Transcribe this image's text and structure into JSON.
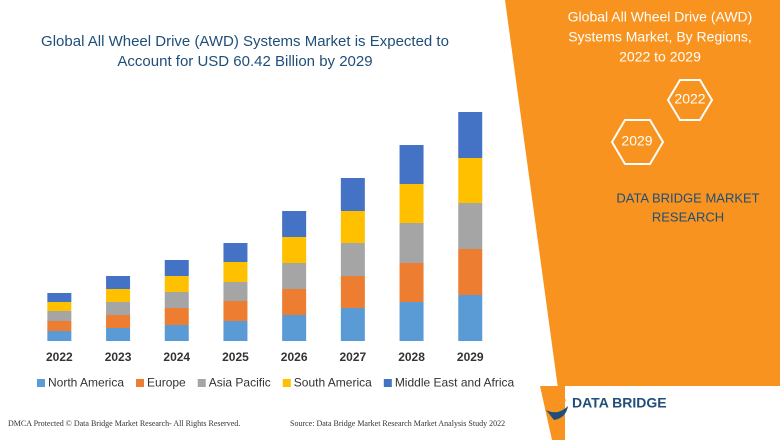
{
  "chart_data": {
    "type": "stacked-bar",
    "title": [
      "Global All Wheel Drive (AWD) Systems Market is Expected to",
      "Account for USD 60.42 Billion by 2029"
    ],
    "categories": [
      "2022",
      "2023",
      "2024",
      "2025",
      "2026",
      "2027",
      "2028",
      "2029"
    ],
    "series": [
      {
        "name": "North America",
        "color": "#5b9bd5",
        "values": [
          10,
          13,
          16,
          20,
          26,
          33,
          39,
          46
        ]
      },
      {
        "name": "Europe",
        "color": "#ed7d31",
        "values": [
          10,
          13,
          17,
          20,
          26,
          32,
          39,
          46
        ]
      },
      {
        "name": "Asia Pacific",
        "color": "#a5a5a5",
        "values": [
          10,
          13,
          16,
          19,
          26,
          33,
          40,
          46
        ]
      },
      {
        "name": "South America",
        "color": "#ffc000",
        "values": [
          9,
          13,
          16,
          20,
          26,
          32,
          39,
          45
        ]
      },
      {
        "name": "Middle East and Africa",
        "color": "#4472c4",
        "values": [
          9,
          13,
          16,
          19,
          26,
          33,
          39,
          46
        ]
      }
    ],
    "ylim": [
      0,
      240
    ]
  },
  "side_panel": {
    "title": [
      "Global All Wheel Drive (AWD)",
      "Systems Market, By Regions,",
      "2022 to 2029"
    ],
    "hexagons": [
      "2022",
      "2029"
    ],
    "brand": [
      "DATA BRIDGE MARKET",
      "RESEARCH"
    ]
  },
  "footer": {
    "left": "DMCA Protected © Data Bridge Market Research- All Rights Reserved.",
    "source": "Source: Data Bridge Market Research Market Analysis Study 2022",
    "logo": "DATA BRIDGE"
  }
}
